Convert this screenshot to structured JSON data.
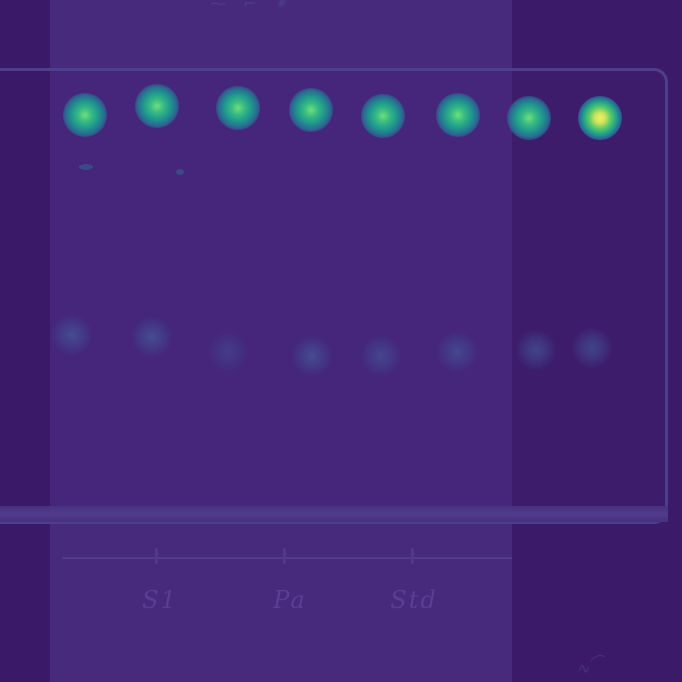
{
  "image": {
    "lane_labels": [
      "S1",
      "Pa",
      "Std"
    ],
    "spot_counts": {
      "solvent_front_row": 8,
      "lower_row": 8
    },
    "brightest_spot": "rightmost spot in the top row"
  }
}
